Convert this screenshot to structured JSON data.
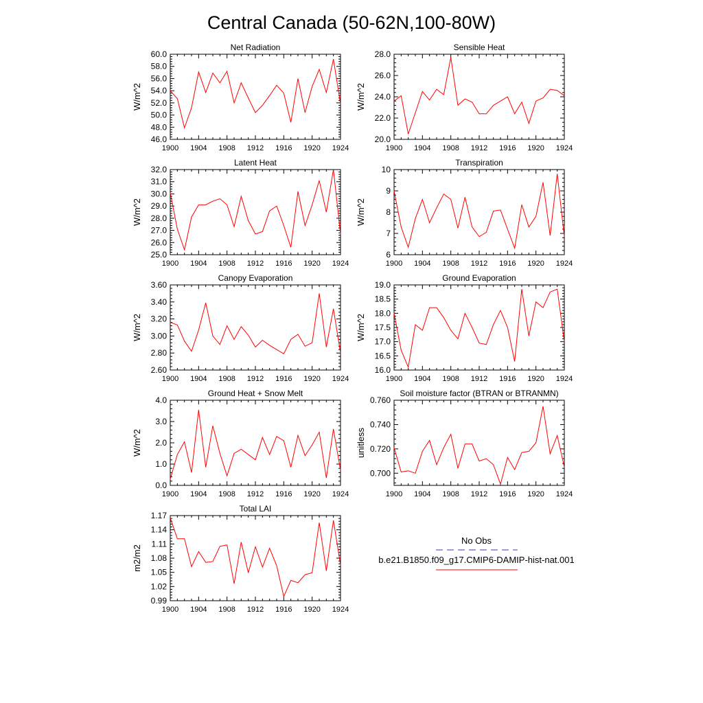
{
  "page_title": "Central Canada (50-62N,100-80W)",
  "colors": {
    "series": "#ff0000",
    "obs": "#3b3bb0",
    "axis": "#000000"
  },
  "legend": {
    "obs_label": "No Obs",
    "series_label": "b.e21.B1850.f09_g17.CMIP6-DAMIP-hist-nat.001"
  },
  "chart_data": [
    {
      "type": "line",
      "title": "Net Radiation",
      "ylabel": "W/m^2",
      "xlim": [
        1900,
        1924
      ],
      "ylim": [
        46,
        60
      ],
      "xticks": [
        1900,
        1904,
        1908,
        1912,
        1916,
        1920,
        1924
      ],
      "yticks": [
        "46.0",
        "48.0",
        "50.0",
        "52.0",
        "54.0",
        "56.0",
        "58.0",
        "60.0"
      ],
      "series": [
        {
          "x": [
            1900,
            1901,
            1902,
            1903,
            1904,
            1905,
            1906,
            1907,
            1908,
            1909,
            1910,
            1911,
            1912,
            1913,
            1914,
            1915,
            1916,
            1917,
            1918,
            1919,
            1920,
            1921,
            1922,
            1923,
            1924
          ],
          "values": [
            54.0,
            52.7,
            47.9,
            51.2,
            57.1,
            53.7,
            56.9,
            55.3,
            57.2,
            52.0,
            55.3,
            52.8,
            50.4,
            51.6,
            53.2,
            54.9,
            53.6,
            48.8,
            56.0,
            50.4,
            54.7,
            57.5,
            53.7,
            59.2,
            51.8
          ]
        }
      ]
    },
    {
      "type": "line",
      "title": "Sensible Heat",
      "ylabel": "W/m^2",
      "xlim": [
        1900,
        1924
      ],
      "ylim": [
        20,
        28
      ],
      "xticks": [
        1900,
        1904,
        1908,
        1912,
        1916,
        1920,
        1924
      ],
      "yticks": [
        "20.0",
        "22.0",
        "24.0",
        "26.0",
        "28.0"
      ],
      "series": [
        {
          "x": [
            1900,
            1901,
            1902,
            1903,
            1904,
            1905,
            1906,
            1907,
            1908,
            1909,
            1910,
            1911,
            1912,
            1913,
            1914,
            1915,
            1916,
            1917,
            1918,
            1919,
            1920,
            1921,
            1922,
            1923,
            1924
          ],
          "values": [
            23.6,
            24.1,
            20.5,
            22.5,
            24.5,
            23.7,
            24.7,
            24.2,
            27.7,
            23.2,
            23.8,
            23.5,
            22.4,
            22.4,
            23.2,
            23.6,
            24.0,
            22.4,
            23.5,
            21.5,
            23.6,
            23.9,
            24.7,
            24.6,
            24.1
          ]
        }
      ]
    },
    {
      "type": "line",
      "title": "Latent Heat",
      "ylabel": "W/m^2",
      "xlim": [
        1900,
        1924
      ],
      "ylim": [
        25,
        32
      ],
      "xticks": [
        1900,
        1904,
        1908,
        1912,
        1916,
        1920,
        1924
      ],
      "yticks": [
        "25.0",
        "26.0",
        "27.0",
        "28.0",
        "29.0",
        "30.0",
        "31.0",
        "32.0"
      ],
      "series": [
        {
          "x": [
            1900,
            1901,
            1902,
            1903,
            1904,
            1905,
            1906,
            1907,
            1908,
            1909,
            1910,
            1911,
            1912,
            1913,
            1914,
            1915,
            1916,
            1917,
            1918,
            1919,
            1920,
            1921,
            1922,
            1923,
            1924
          ],
          "values": [
            30.1,
            27.1,
            25.4,
            28.1,
            29.1,
            29.1,
            29.4,
            29.6,
            29.1,
            27.3,
            29.8,
            27.8,
            26.7,
            26.9,
            28.6,
            29.0,
            27.4,
            25.6,
            30.2,
            27.4,
            29.1,
            31.1,
            28.5,
            32.0,
            26.7
          ]
        }
      ]
    },
    {
      "type": "line",
      "title": "Transpiration",
      "ylabel": "W/m^2",
      "xlim": [
        1900,
        1924
      ],
      "ylim": [
        6,
        10
      ],
      "xticks": [
        1900,
        1904,
        1908,
        1912,
        1916,
        1920,
        1924
      ],
      "yticks": [
        "6",
        "7",
        "8",
        "9",
        "10"
      ],
      "series": [
        {
          "x": [
            1900,
            1901,
            1902,
            1903,
            1904,
            1905,
            1906,
            1907,
            1908,
            1909,
            1910,
            1911,
            1912,
            1913,
            1914,
            1915,
            1916,
            1917,
            1918,
            1919,
            1920,
            1921,
            1922,
            1923,
            1924
          ],
          "values": [
            9.0,
            7.3,
            6.35,
            7.7,
            8.6,
            7.5,
            8.2,
            8.85,
            8.6,
            7.25,
            8.7,
            7.3,
            6.85,
            7.05,
            8.05,
            8.1,
            7.2,
            6.3,
            8.35,
            7.3,
            7.8,
            9.4,
            6.9,
            9.8,
            6.85
          ]
        }
      ]
    },
    {
      "type": "line",
      "title": "Canopy Evaporation",
      "ylabel": "W/m^2",
      "xlim": [
        1900,
        1924
      ],
      "ylim": [
        2.6,
        3.6
      ],
      "xticks": [
        1900,
        1904,
        1908,
        1912,
        1916,
        1920,
        1924
      ],
      "yticks": [
        "2.60",
        "2.80",
        "3.00",
        "3.20",
        "3.40",
        "3.60"
      ],
      "series": [
        {
          "x": [
            1900,
            1901,
            1902,
            1903,
            1904,
            1905,
            1906,
            1907,
            1908,
            1909,
            1910,
            1911,
            1912,
            1913,
            1914,
            1915,
            1916,
            1917,
            1918,
            1919,
            1920,
            1921,
            1922,
            1923,
            1924
          ],
          "values": [
            3.16,
            3.13,
            2.94,
            2.82,
            3.07,
            3.39,
            3.0,
            2.9,
            3.12,
            2.96,
            3.11,
            3.01,
            2.87,
            2.95,
            2.89,
            2.84,
            2.79,
            2.96,
            3.02,
            2.88,
            2.92,
            3.5,
            2.87,
            3.32,
            2.8
          ]
        }
      ]
    },
    {
      "type": "line",
      "title": "Ground Evaporation",
      "ylabel": "W/m^2",
      "xlim": [
        1900,
        1924
      ],
      "ylim": [
        16,
        19
      ],
      "xticks": [
        1900,
        1904,
        1908,
        1912,
        1916,
        1920,
        1924
      ],
      "yticks": [
        "16.0",
        "16.5",
        "17.0",
        "17.5",
        "18.0",
        "18.5",
        "19.0"
      ],
      "series": [
        {
          "x": [
            1900,
            1901,
            1902,
            1903,
            1904,
            1905,
            1906,
            1907,
            1908,
            1909,
            1910,
            1911,
            1912,
            1913,
            1914,
            1915,
            1916,
            1917,
            1918,
            1919,
            1920,
            1921,
            1922,
            1923,
            1924
          ],
          "values": [
            18.0,
            16.7,
            16.1,
            17.6,
            17.4,
            18.2,
            18.2,
            17.85,
            17.4,
            17.1,
            18.0,
            17.5,
            16.95,
            16.9,
            17.6,
            18.1,
            17.5,
            16.3,
            18.85,
            17.2,
            18.4,
            18.2,
            18.75,
            18.85,
            17.0
          ]
        }
      ]
    },
    {
      "type": "line",
      "title": "Ground Heat + Snow Melt",
      "ylabel": "W/m^2",
      "xlim": [
        1900,
        1924
      ],
      "ylim": [
        0,
        4
      ],
      "xticks": [
        1900,
        1904,
        1908,
        1912,
        1916,
        1920,
        1924
      ],
      "yticks": [
        "0.0",
        "1.0",
        "2.0",
        "3.0",
        "4.0"
      ],
      "series": [
        {
          "x": [
            1900,
            1901,
            1902,
            1903,
            1904,
            1905,
            1906,
            1907,
            1908,
            1909,
            1910,
            1911,
            1912,
            1913,
            1914,
            1915,
            1916,
            1917,
            1918,
            1919,
            1920,
            1921,
            1922,
            1923,
            1924
          ],
          "values": [
            0.3,
            1.45,
            2.05,
            0.6,
            3.55,
            0.85,
            2.8,
            1.5,
            0.45,
            1.5,
            1.7,
            1.45,
            1.2,
            2.25,
            1.45,
            2.3,
            2.1,
            0.85,
            2.35,
            1.4,
            1.9,
            2.5,
            0.35,
            2.65,
            0.7
          ]
        }
      ]
    },
    {
      "type": "line",
      "title": "Soil moisture factor (BTRAN or BTRANMN)",
      "ylabel": "unitless",
      "xlim": [
        1900,
        1924
      ],
      "ylim": [
        0.69,
        0.76
      ],
      "xticks": [
        1900,
        1904,
        1908,
        1912,
        1916,
        1920,
        1924
      ],
      "yticks": [
        "0.700",
        "0.720",
        "0.740",
        "0.760"
      ],
      "series": [
        {
          "x": [
            1900,
            1901,
            1902,
            1903,
            1904,
            1905,
            1906,
            1907,
            1908,
            1909,
            1910,
            1911,
            1912,
            1913,
            1914,
            1915,
            1916,
            1917,
            1918,
            1919,
            1920,
            1921,
            1922,
            1923,
            1924
          ],
          "values": [
            0.721,
            0.701,
            0.702,
            0.7,
            0.718,
            0.727,
            0.707,
            0.721,
            0.732,
            0.704,
            0.724,
            0.724,
            0.71,
            0.712,
            0.707,
            0.691,
            0.713,
            0.703,
            0.717,
            0.718,
            0.725,
            0.755,
            0.716,
            0.731,
            0.705
          ]
        }
      ]
    },
    {
      "type": "line",
      "title": "Total LAI",
      "ylabel": "m2/m2",
      "xlim": [
        1900,
        1924
      ],
      "ylim": [
        0.99,
        1.17
      ],
      "xticks": [
        1900,
        1904,
        1908,
        1912,
        1916,
        1920,
        1924
      ],
      "yticks": [
        "0.99",
        "1.02",
        "1.05",
        "1.08",
        "1.11",
        "1.14",
        "1.17"
      ],
      "series": [
        {
          "x": [
            1900,
            1901,
            1902,
            1903,
            1904,
            1905,
            1906,
            1907,
            1908,
            1909,
            1910,
            1911,
            1912,
            1913,
            1914,
            1915,
            1916,
            1917,
            1918,
            1919,
            1920,
            1921,
            1922,
            1923,
            1924
          ],
          "values": [
            1.165,
            1.121,
            1.121,
            1.062,
            1.094,
            1.071,
            1.073,
            1.105,
            1.108,
            1.026,
            1.114,
            1.049,
            1.104,
            1.061,
            1.101,
            1.064,
            0.999,
            1.033,
            1.028,
            1.045,
            1.049,
            1.155,
            1.053,
            1.16,
            1.065
          ]
        }
      ]
    }
  ]
}
